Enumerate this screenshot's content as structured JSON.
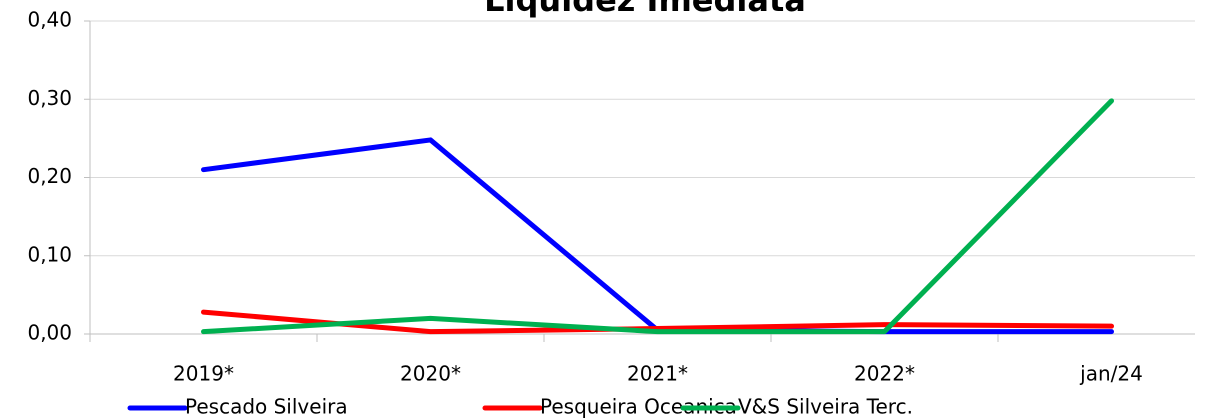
{
  "chart_data": {
    "type": "line",
    "title": "Liquidez Imediata",
    "categories": [
      "2019*",
      "2020*",
      "2021*",
      "2022*",
      "jan/24"
    ],
    "series": [
      {
        "name": "Pescado Silveira",
        "color": "#0000ff",
        "values": [
          0.21,
          0.248,
          0.005,
          0.003,
          0.003
        ]
      },
      {
        "name": "Pesqueira Oceanica",
        "color": "#ff0000",
        "values": [
          0.028,
          0.003,
          0.007,
          0.012,
          0.01
        ]
      },
      {
        "name": "V&S Silveira Terc.",
        "color": "#00b050",
        "values": [
          0.003,
          0.02,
          0.003,
          0.003,
          0.298
        ]
      }
    ],
    "ylim": [
      0,
      0.4
    ],
    "yticks": [
      {
        "value": 0,
        "label": "0,00"
      },
      {
        "value": 0.1,
        "label": "0,10"
      },
      {
        "value": 0.2,
        "label": "0,20"
      },
      {
        "value": 0.3,
        "label": "0,30"
      },
      {
        "value": 0.4,
        "label": "0,40"
      }
    ],
    "grid": true,
    "legend": "bottom"
  }
}
